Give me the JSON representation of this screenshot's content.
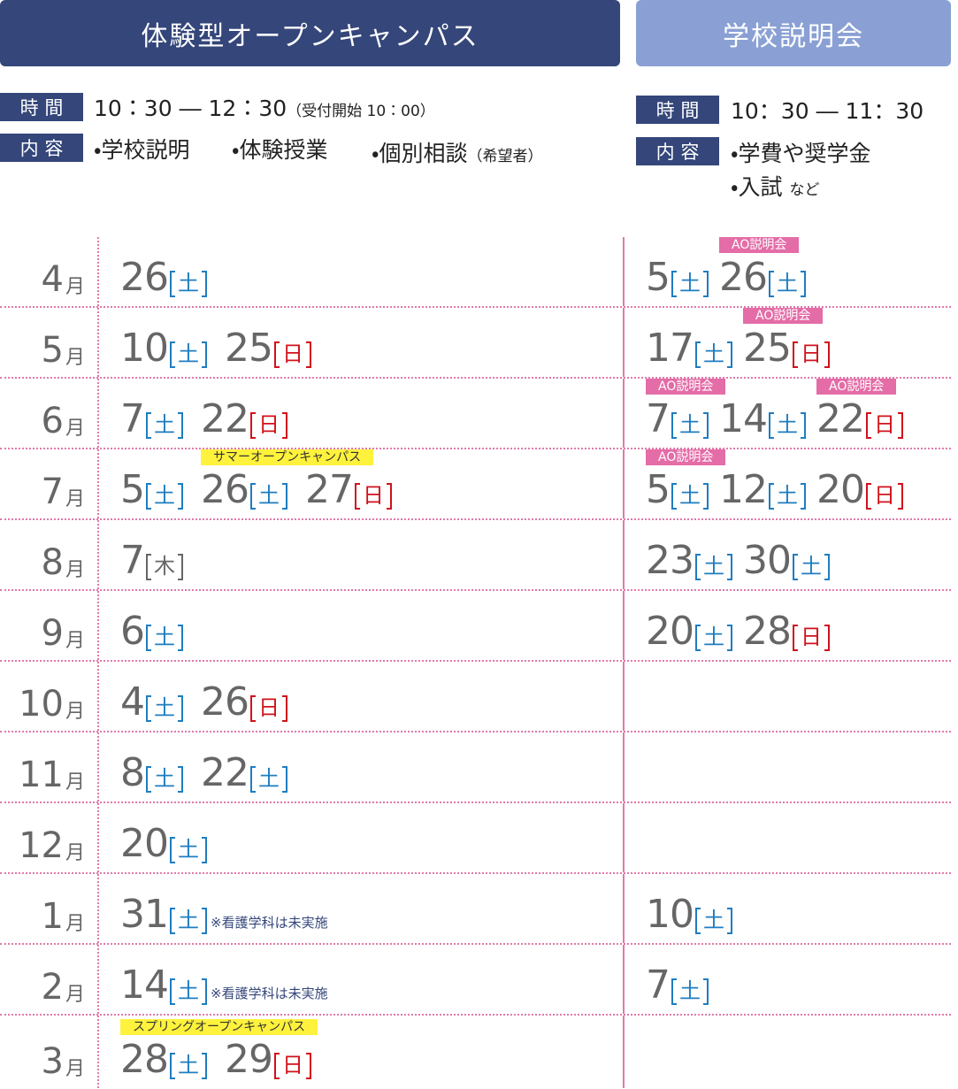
{
  "headers": {
    "open_campus": "体験型オープンキャンパス",
    "briefing": "学校説明会"
  },
  "open_campus_info": {
    "time_label": "時 間",
    "time": "10：30 ― 12：30",
    "time_note": "（受付開始 10：00）",
    "content_label": "内 容",
    "contents": [
      "・学校説明",
      "・体験授業",
      "・個別相談"
    ],
    "content_note": "（希望者）"
  },
  "briefing_info": {
    "time_label": "時 間",
    "time": "10：30 ― 11：30",
    "content_label": "内 容",
    "contents": [
      "・学費や奨学金",
      "・入試"
    ],
    "content_note": "など"
  },
  "month_suffix": "月",
  "weekday_colors": {
    "土": "#1f7dc0",
    "日": "#d0121b",
    "木": "#666666"
  },
  "schedule": [
    {
      "month": "4",
      "open_campus": [
        {
          "day": "26",
          "weekday": "土"
        }
      ],
      "briefing": [
        {
          "day": "5",
          "weekday": "土"
        },
        {
          "day": "26",
          "weekday": "土",
          "tag": {
            "text": "AO説明会",
            "color": "#e46ca7",
            "text_color": "#ffffff"
          }
        }
      ]
    },
    {
      "month": "5",
      "open_campus": [
        {
          "day": "10",
          "weekday": "土"
        },
        {
          "day": "25",
          "weekday": "日"
        }
      ],
      "briefing": [
        {
          "day": "17",
          "weekday": "土"
        },
        {
          "day": "25",
          "weekday": "日",
          "tag": {
            "text": "AO説明会",
            "color": "#e46ca7",
            "text_color": "#ffffff"
          }
        }
      ]
    },
    {
      "month": "6",
      "open_campus": [
        {
          "day": "7",
          "weekday": "土"
        },
        {
          "day": "22",
          "weekday": "日"
        }
      ],
      "briefing": [
        {
          "day": "7",
          "weekday": "土",
          "tag": {
            "text": "AO説明会",
            "color": "#e46ca7",
            "text_color": "#ffffff"
          }
        },
        {
          "day": "14",
          "weekday": "土"
        },
        {
          "day": "22",
          "weekday": "日",
          "tag": {
            "text": "AO説明会",
            "color": "#e46ca7",
            "text_color": "#ffffff"
          }
        }
      ]
    },
    {
      "month": "7",
      "open_campus": [
        {
          "day": "5",
          "weekday": "土"
        },
        {
          "day": "26",
          "weekday": "土",
          "tag": {
            "text": "サマーオープンキャンパス",
            "color": "#fff23c",
            "text_color": "#333333"
          }
        },
        {
          "day": "27",
          "weekday": "日"
        }
      ],
      "briefing": [
        {
          "day": "5",
          "weekday": "土",
          "tag": {
            "text": "AO説明会",
            "color": "#e46ca7",
            "text_color": "#ffffff"
          }
        },
        {
          "day": "12",
          "weekday": "土"
        },
        {
          "day": "20",
          "weekday": "日"
        }
      ]
    },
    {
      "month": "8",
      "open_campus": [
        {
          "day": "7",
          "weekday": "木"
        }
      ],
      "briefing": [
        {
          "day": "23",
          "weekday": "土"
        },
        {
          "day": "30",
          "weekday": "土"
        }
      ]
    },
    {
      "month": "9",
      "open_campus": [
        {
          "day": "6",
          "weekday": "土"
        }
      ],
      "briefing": [
        {
          "day": "20",
          "weekday": "土"
        },
        {
          "day": "28",
          "weekday": "日"
        }
      ]
    },
    {
      "month": "10",
      "open_campus": [
        {
          "day": "4",
          "weekday": "土"
        },
        {
          "day": "26",
          "weekday": "日"
        }
      ],
      "briefing": []
    },
    {
      "month": "11",
      "open_campus": [
        {
          "day": "8",
          "weekday": "土"
        },
        {
          "day": "22",
          "weekday": "土"
        }
      ],
      "briefing": []
    },
    {
      "month": "12",
      "open_campus": [
        {
          "day": "20",
          "weekday": "土"
        }
      ],
      "briefing": []
    },
    {
      "month": "1",
      "open_campus": [
        {
          "day": "31",
          "weekday": "土",
          "note": "※看護学科は未実施"
        }
      ],
      "briefing": [
        {
          "day": "10",
          "weekday": "土"
        }
      ]
    },
    {
      "month": "2",
      "open_campus": [
        {
          "day": "14",
          "weekday": "土",
          "note": "※看護学科は未実施"
        }
      ],
      "briefing": [
        {
          "day": "7",
          "weekday": "土"
        }
      ]
    },
    {
      "month": "3",
      "open_campus": [
        {
          "day": "28",
          "weekday": "土",
          "tag": {
            "text": "スプリングオープンキャンパス",
            "color": "#fff23c",
            "text_color": "#333333"
          }
        },
        {
          "day": "29",
          "weekday": "日"
        }
      ],
      "briefing": []
    }
  ]
}
